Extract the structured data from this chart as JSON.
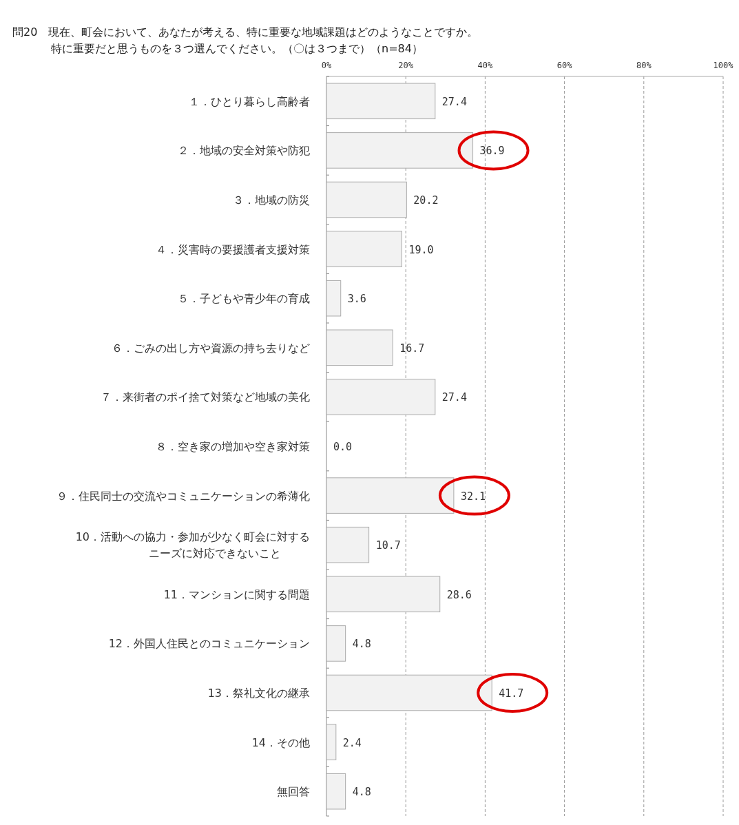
{
  "chart_data": {
    "type": "bar",
    "orientation": "horizontal",
    "title": "問20　現在、町会において、あなたが考える、特に重要な地域課題はどのようなことですか。",
    "subtitle": "特に重要だと思うものを３つ選んでください。（〇は３つまで）（n=84）",
    "categories": [
      "１．ひとり暮らし高齢者",
      "２．地域の安全対策や防犯",
      "３．地域の防災",
      "４．災害時の要援護者支援対策",
      "５．子どもや青少年の育成",
      "６．ごみの出し方や資源の持ち去りなど",
      "７．来街者のポイ捨て対策など地域の美化",
      "８．空き家の増加や空き家対策",
      "９．住民同士の交流やコミュニケーションの希薄化",
      "10．活動への協力・参加が少なく町会に対するニーズに対応できないこと",
      "11．マンションに関する問題",
      "12．外国人住民とのコミュニケーション",
      "13．祭礼文化の継承",
      "14．その他",
      "無回答"
    ],
    "values": [
      27.4,
      36.9,
      20.2,
      19.0,
      3.6,
      16.7,
      27.4,
      0.0,
      32.1,
      10.7,
      28.6,
      4.8,
      41.7,
      2.4,
      4.8
    ],
    "value_labels": [
      "27.4",
      "36.9",
      "20.2",
      "19.0",
      "3.6",
      "16.7",
      "27.4",
      "0.0",
      "32.1",
      "10.7",
      "28.6",
      "4.8",
      "41.7",
      "2.4",
      "4.8"
    ],
    "color": "#f2f2f2",
    "xlim": [
      0,
      100
    ],
    "xticks": [
      {
        "value": 0,
        "label": "0%"
      },
      {
        "value": 20,
        "label": "20%"
      },
      {
        "value": 40,
        "label": "40%"
      },
      {
        "value": 60,
        "label": "60%"
      },
      {
        "value": 80,
        "label": "80%"
      },
      {
        "value": 100,
        "label": "100%"
      }
    ],
    "grid": "x",
    "line_style": "dashed"
  }
}
